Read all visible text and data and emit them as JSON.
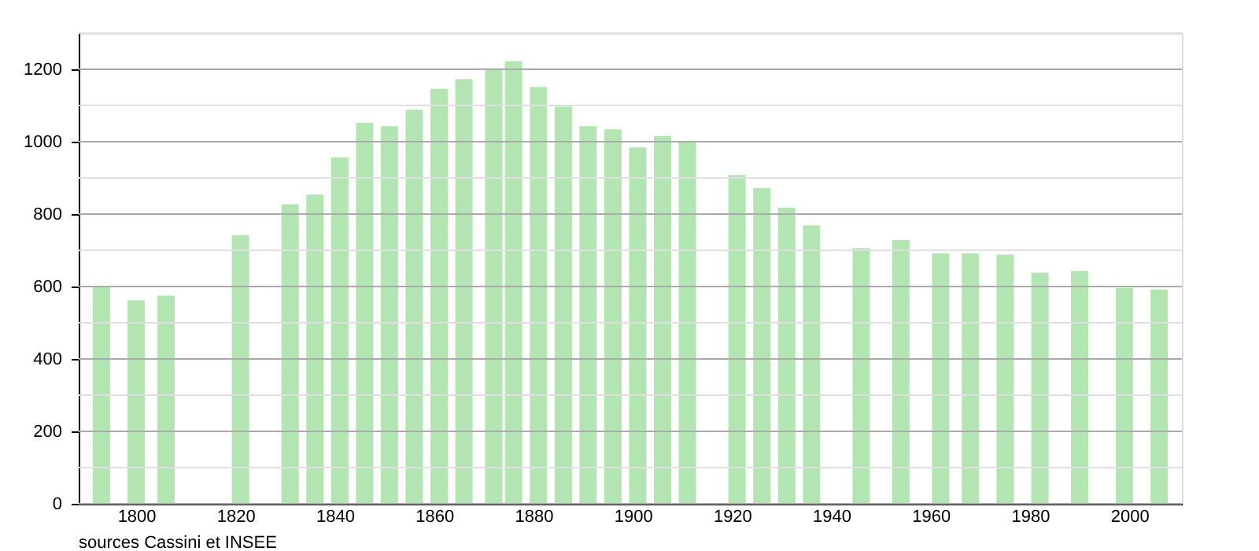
{
  "chart_data": {
    "type": "bar",
    "x": [
      1793,
      1800,
      1806,
      1821,
      1831,
      1836,
      1841,
      1846,
      1851,
      1856,
      1861,
      1866,
      1872,
      1876,
      1881,
      1886,
      1891,
      1896,
      1901,
      1906,
      1911,
      1921,
      1926,
      1931,
      1936,
      1946,
      1954,
      1962,
      1968,
      1975,
      1982,
      1990,
      1999,
      2006
    ],
    "values": [
      600,
      562,
      575,
      742,
      827,
      854,
      957,
      1052,
      1043,
      1088,
      1146,
      1173,
      1200,
      1222,
      1151,
      1097,
      1043,
      1034,
      984,
      1016,
      998,
      908,
      872,
      818,
      769,
      706,
      728,
      692,
      692,
      688,
      638,
      643,
      596,
      592
    ],
    "color": "#b3e5b3",
    "xlim": [
      1790,
      2009
    ],
    "xticks": [
      1800,
      1820,
      1840,
      1860,
      1880,
      1900,
      1920,
      1940,
      1960,
      1980,
      2000
    ],
    "ylim": [
      0,
      1300
    ],
    "yticks": [
      0,
      {
        "value": 100,
        "label": null
      },
      200,
      {
        "value": 300,
        "label": null
      },
      400,
      {
        "value": 500,
        "label": null
      },
      600,
      {
        "value": 700,
        "label": null
      },
      800,
      {
        "value": 900,
        "label": null
      },
      1000,
      {
        "value": 1100,
        "label": null
      },
      1200,
      {
        "value": 1300,
        "label": null
      }
    ],
    "grid": "y",
    "annotations": [
      "sources Cassini et INSEE"
    ]
  }
}
